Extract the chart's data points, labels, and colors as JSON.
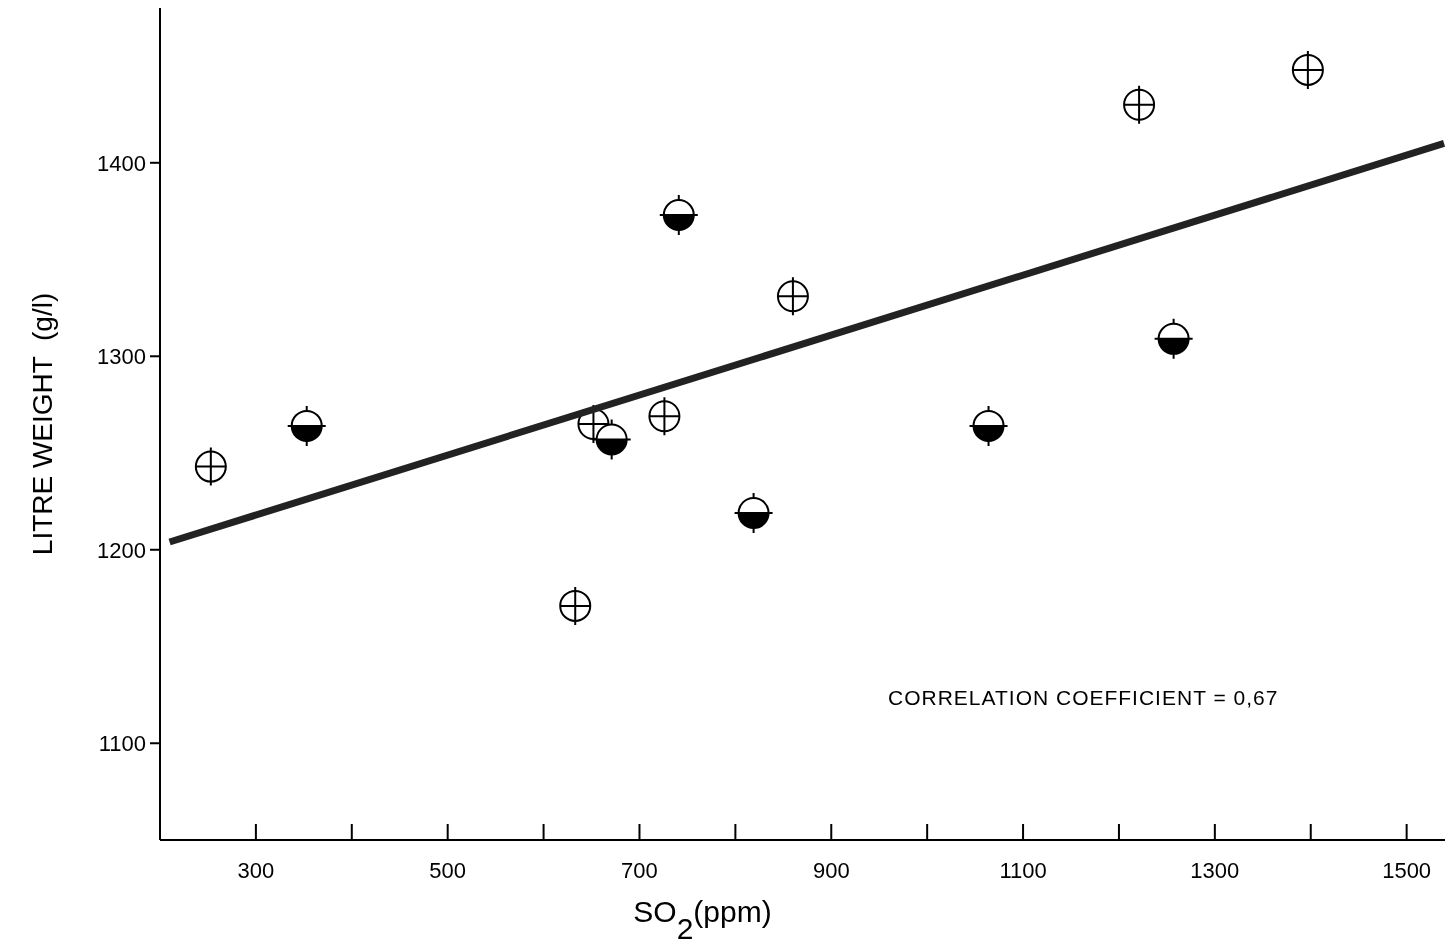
{
  "chart_data": {
    "type": "scatter",
    "xlabel": "SO$_{2}$(ppm)",
    "ylabel": "LITRE WEIGHT  (g/l)",
    "xlim": [
      200,
      1540
    ],
    "ylim": [
      1050,
      1480
    ],
    "xticks": [
      300,
      {
        "value": 400,
        "label": null
      },
      500,
      {
        "value": 600,
        "label": null
      },
      700,
      {
        "value": 800,
        "label": null
      },
      900,
      {
        "value": 1000,
        "label": null
      },
      1100,
      {
        "value": 1200,
        "label": null
      },
      1300,
      {
        "value": 1400,
        "label": null
      },
      1500
    ],
    "yticks": [
      1100,
      1200,
      1300,
      1400
    ],
    "grid": false,
    "annotations": [
      "CORRELATION COEFFICIENT = 0,67"
    ],
    "series": [
      {
        "marker": "circle",
        "color": "#000000",
        "x": [
          253,
          633,
          652,
          726,
          860,
          1221,
          1397
        ],
        "values": [
          1243,
          1171,
          1265,
          1269,
          1331,
          1430,
          1448
        ]
      },
      {
        "marker": "circle",
        "color": "#000000",
        "x": [
          353,
          671,
          741,
          819,
          1064,
          1257
        ],
        "values": [
          1264,
          1257,
          1373,
          1219,
          1264,
          1309
        ]
      },
      {
        "type": "line",
        "color": "#222222",
        "marker": "none",
        "line_style": "solid",
        "x": [
          210,
          1539
        ],
        "values": [
          1204,
          1410
        ]
      }
    ]
  }
}
